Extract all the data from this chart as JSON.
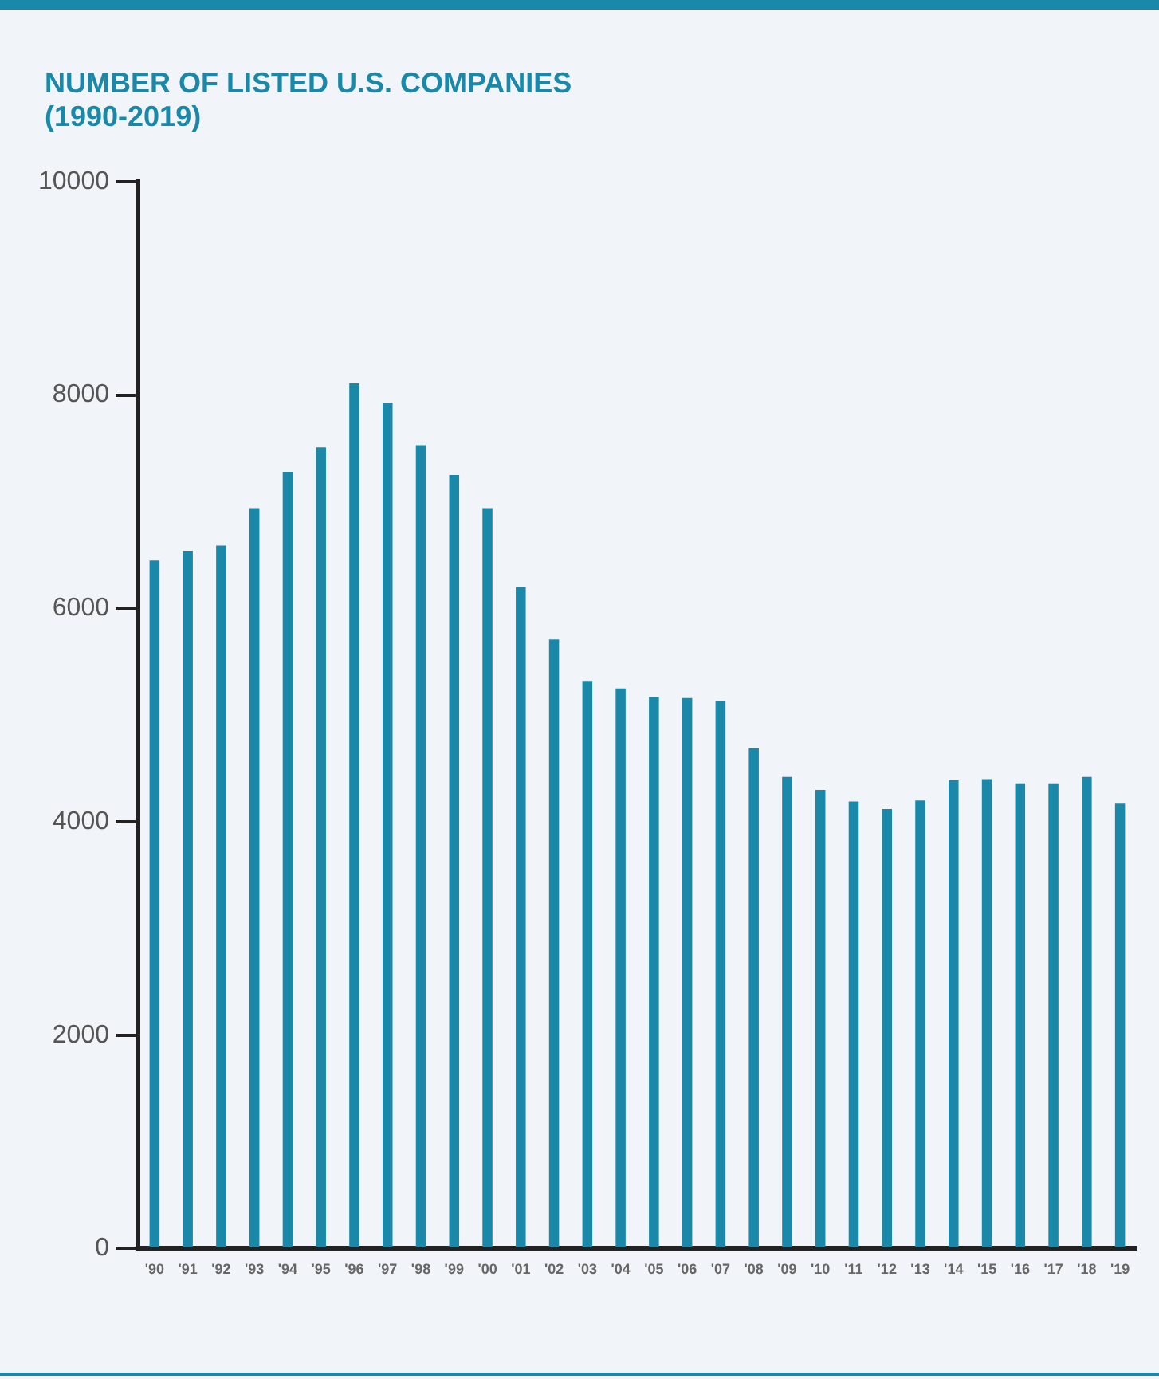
{
  "chart_data": {
    "type": "bar",
    "title": "NUMBER OF LISTED U.S. COMPANIES",
    "subtitle": "(1990-2019)",
    "categories": [
      "'90",
      "'91",
      "'92",
      "'93",
      "'94",
      "'95",
      "'96",
      "'97",
      "'98",
      "'99",
      "'00",
      "'01",
      "'02",
      "'03",
      "'04",
      "'05",
      "'06",
      "'07",
      "'08",
      "'09",
      "'10",
      "'11",
      "'12",
      "'13",
      "'14",
      "'15",
      "'16",
      "'17",
      "'18",
      "'19"
    ],
    "values": [
      6450,
      6540,
      6590,
      6940,
      7280,
      7510,
      8110,
      7930,
      7530,
      7250,
      6940,
      6200,
      5710,
      5320,
      5250,
      5170,
      5160,
      5130,
      4690,
      4420,
      4300,
      4190,
      4120,
      4200,
      4390,
      4400,
      4360,
      4360,
      4420,
      4170
    ],
    "color": "#1a88a8",
    "ylim": [
      0,
      10000
    ],
    "yticks": [
      0,
      2000,
      4000,
      6000,
      8000,
      10000
    ],
    "grid": false
  }
}
